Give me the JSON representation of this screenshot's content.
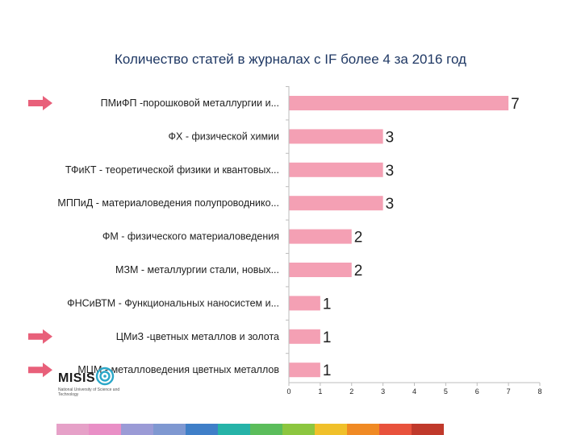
{
  "chart_data": {
    "type": "bar",
    "orientation": "horizontal",
    "title": "Количество статей в журналах с IF более 4 за 2016 год",
    "categories": [
      "ПМиФП  -порошковой металлургии и...",
      "ФХ - физической химии",
      "ТФиКТ - теоретической физики и квантовых...",
      "МППиД - материаловедения полупроводнико...",
      "ФМ - физического материаловедения",
      "МЗМ  - металлургии стали, новых...",
      "ФНСиВТМ - Функциональных наносистем и...",
      "ЦМиЗ  -цветных металлов и золота",
      "МЦМ - металловедения цветных металлов"
    ],
    "values": [
      7,
      3,
      3,
      3,
      2,
      2,
      1,
      1,
      1
    ],
    "xlim": [
      0,
      8
    ],
    "xticks": [
      "0",
      "1",
      "2",
      "3",
      "4",
      "5",
      "6",
      "7",
      "8"
    ],
    "highlighted": [
      true,
      false,
      false,
      false,
      false,
      false,
      false,
      true,
      true
    ],
    "grid": false,
    "bar_color": "#f4a0b4",
    "arrow_color": "#e8607a"
  },
  "logo": {
    "text": "MISIS",
    "subtitle": "National University of Science and Technology"
  },
  "footer_strip_colors": [
    "#e6a1c8",
    "#e98fc6",
    "#9b9bd6",
    "#7f98d1",
    "#3f7fc8",
    "#26b3a8",
    "#5bbd5b",
    "#8cc63f",
    "#f0c02a",
    "#f08a24",
    "#e8523c",
    "#c0392b"
  ]
}
